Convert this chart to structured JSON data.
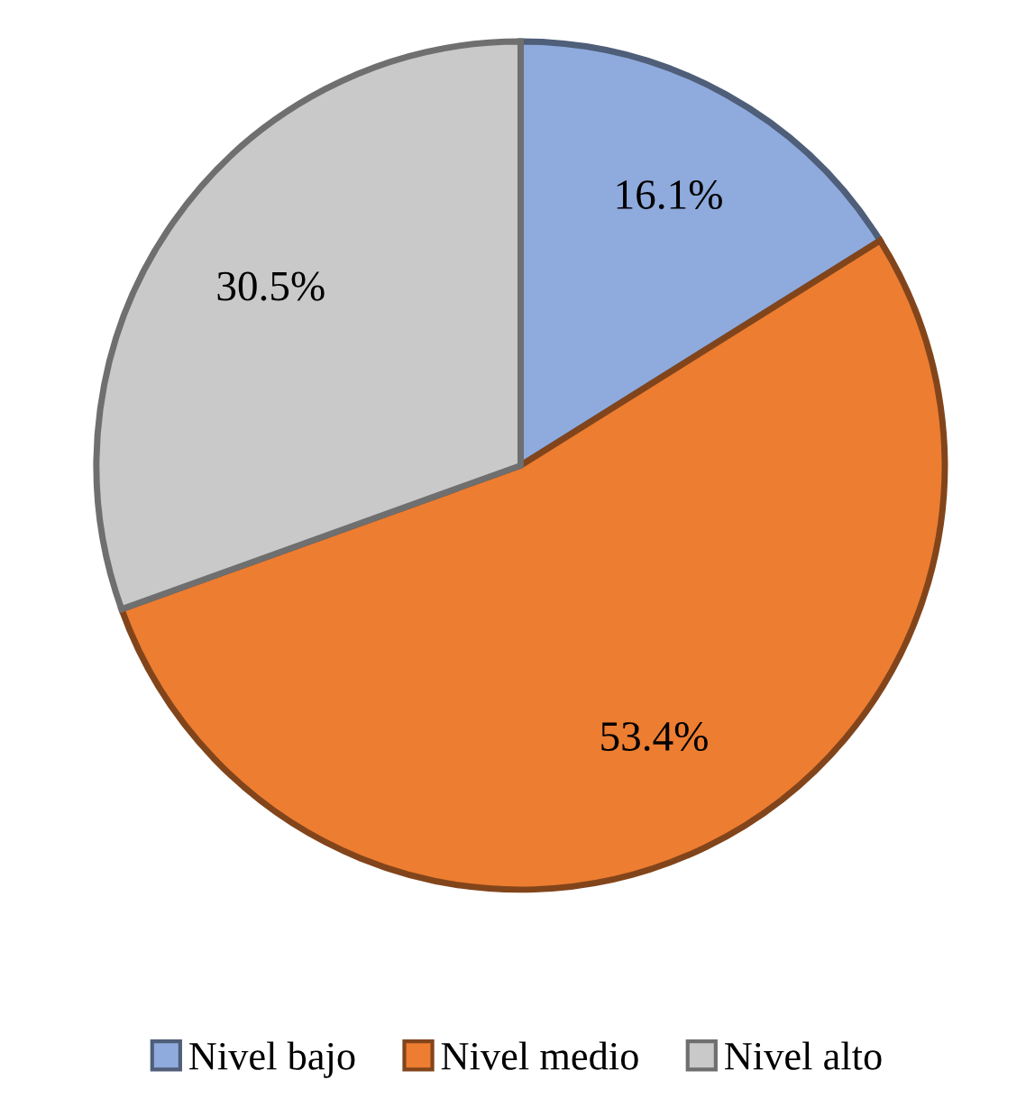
{
  "chart_data": {
    "type": "pie",
    "categories": [
      "Nivel bajo",
      "Nivel medio",
      "Nivel alto"
    ],
    "values": [
      16.1,
      53.4,
      30.5
    ],
    "value_labels": [
      "16.1%",
      "53.4%",
      "30.5%"
    ],
    "colors": [
      "#8faadc",
      "#ed7d31",
      "#c9c9c9"
    ],
    "legend": "bottom"
  }
}
